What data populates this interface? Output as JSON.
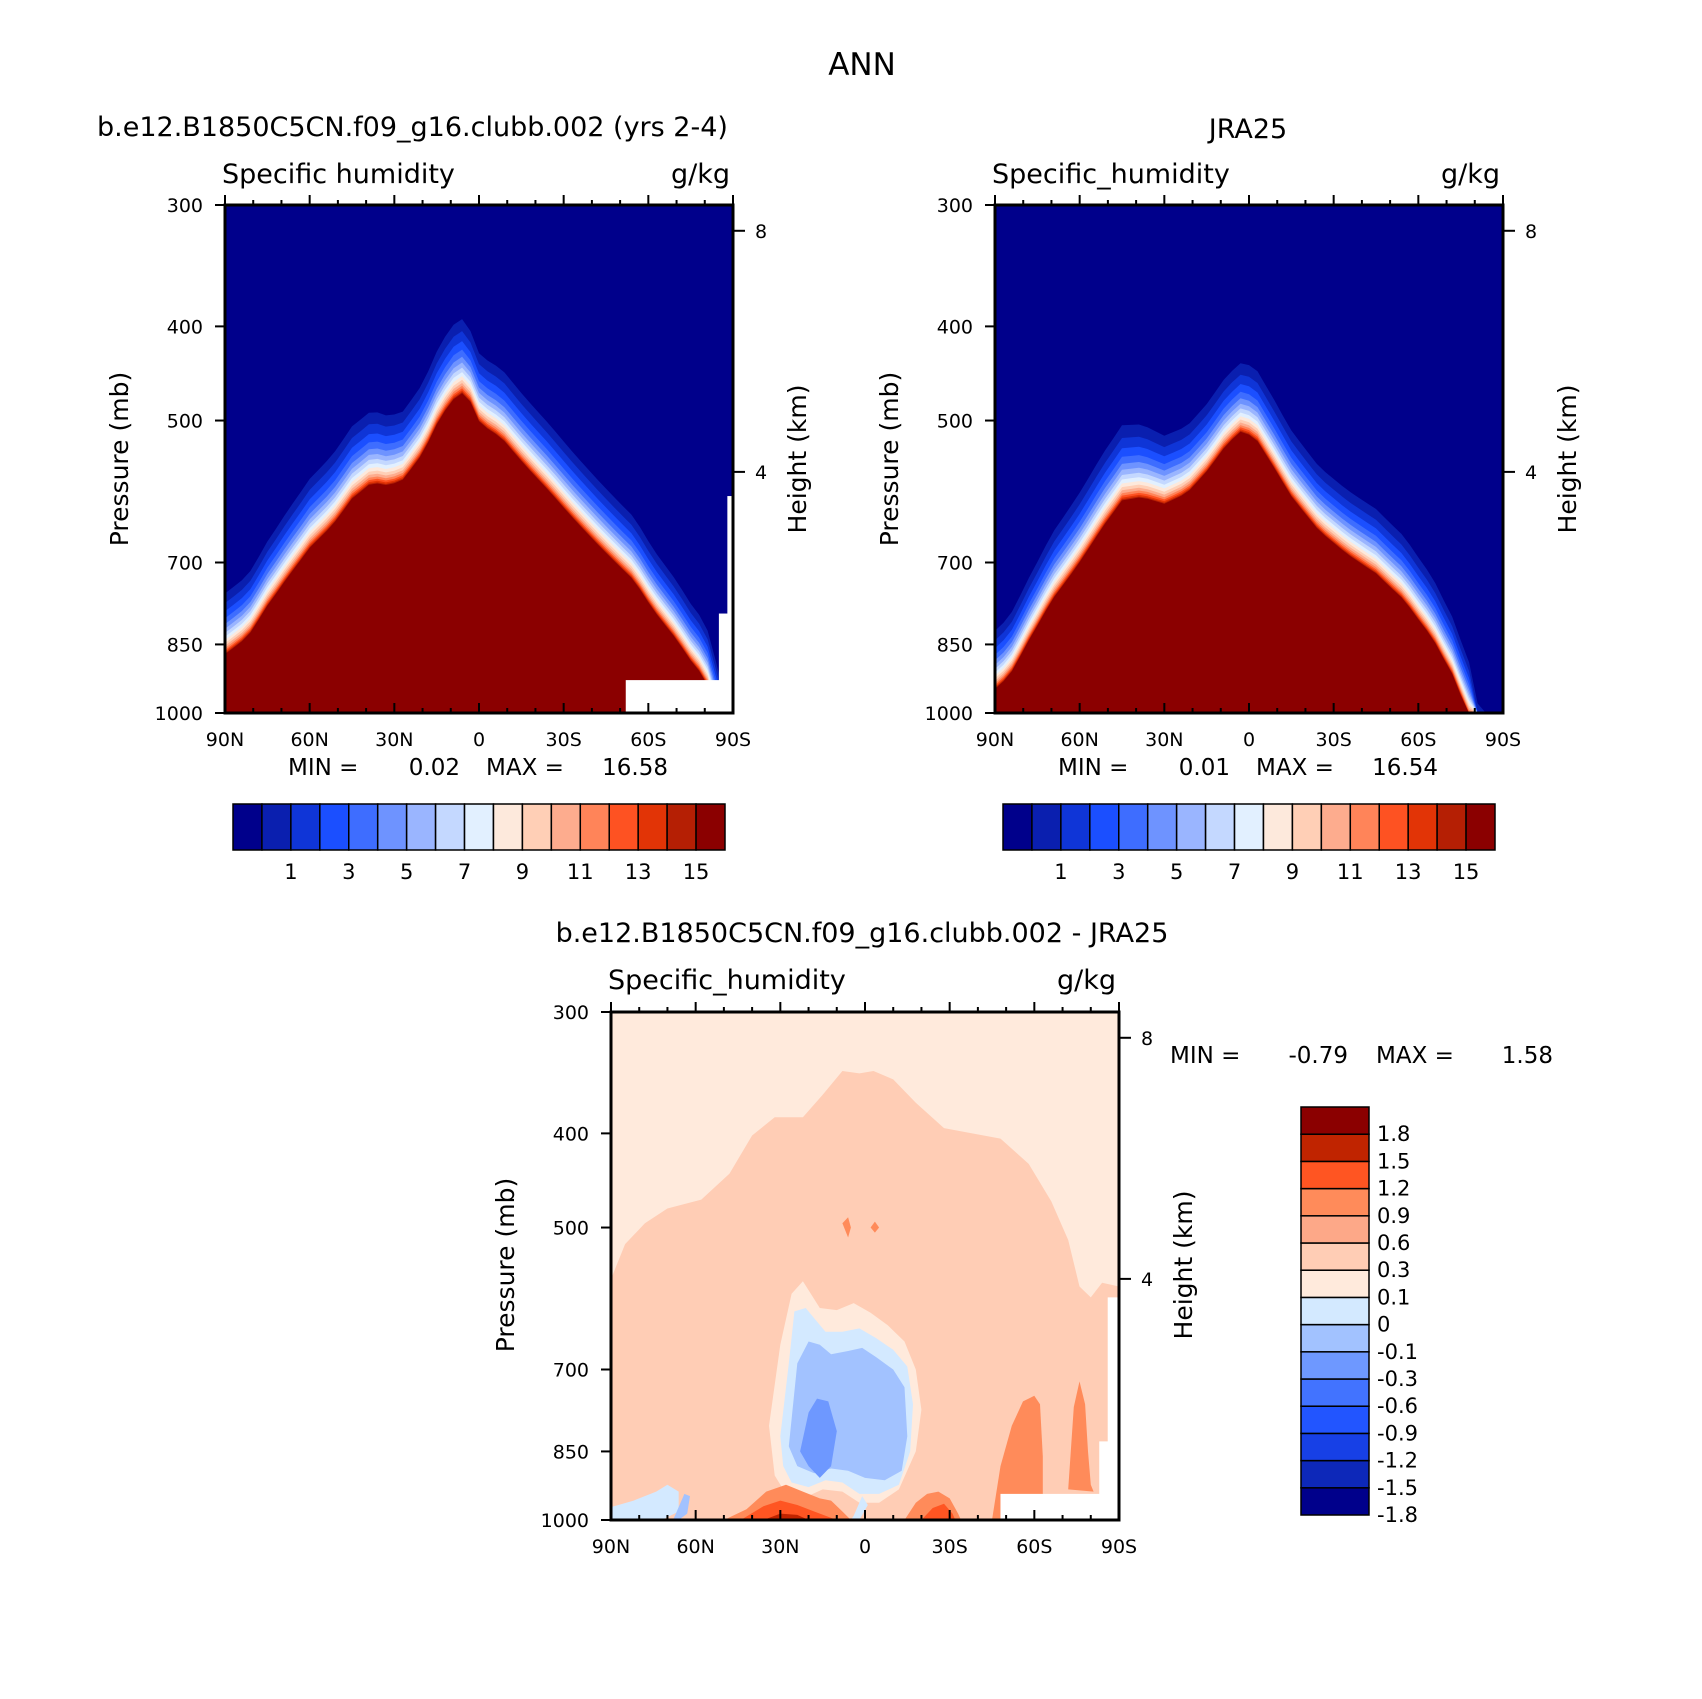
{
  "figure": {
    "title": "ANN"
  },
  "colors": {
    "humidity": [
      "#00008b",
      "#0a1faf",
      "#0f35d7",
      "#1b4fff",
      "#3e6dff",
      "#6e93ff",
      "#9ab5ff",
      "#c4d8ff",
      "#e2f0ff",
      "#fde9dc",
      "#ffcfb6",
      "#fdac8e",
      "#ff8459",
      "#fe5222",
      "#e23406",
      "#b51f04",
      "#8b0000"
    ],
    "difference": [
      "#00008b",
      "#0d28b9",
      "#1740e6",
      "#2255ff",
      "#4273ff",
      "#6e98ff",
      "#a2c2ff",
      "#d3e9ff",
      "#ffeadc",
      "#ffcdb5",
      "#fda888",
      "#ff8b5a",
      "#ff5522",
      "#c02400",
      "#8b0000"
    ]
  },
  "chart_data": [
    {
      "type": "heatmap",
      "title": "b.e12.B1850C5CN.f09_g16.clubb.002 (yrs 2-4)",
      "left_string": "Specific humidity",
      "right_string": "g/kg",
      "ylabel": "Pressure (mb)",
      "ylabel_right": "Height (km)",
      "x_ticks": [
        "90N",
        "60N",
        "30N",
        "0",
        "30S",
        "60S",
        "90S"
      ],
      "y_ticks": [
        "300",
        "400",
        "500",
        "700",
        "850",
        "1000"
      ],
      "right_ticks": [
        "8",
        "4"
      ],
      "ylim": [
        1000,
        300
      ],
      "min_text": "MIN =",
      "min_value": "0.02",
      "max_text": "MAX =",
      "max_value": "16.58",
      "levels": [
        0,
        1,
        2,
        3,
        4,
        5,
        6,
        7,
        8,
        9,
        10,
        11,
        12,
        13,
        14,
        15,
        16
      ],
      "colorbar_labels": [
        "1",
        "3",
        "5",
        "7",
        "9",
        "11",
        "13",
        "15"
      ],
      "boundary_lat": [
        -90,
        -82,
        -75,
        -68,
        -60,
        -52,
        -45,
        -38,
        -32,
        -27,
        -20,
        -15,
        -10,
        -5,
        -2,
        0,
        3,
        8,
        15,
        25,
        35,
        45,
        55,
        62,
        70,
        75,
        78,
        82,
        85,
        90
      ],
      "boundary_p": [
        720,
        690,
        635,
        590,
        545,
        515,
        480,
        462,
        470,
        465,
        435,
        402,
        378,
        370,
        390,
        405,
        412,
        420,
        445,
        480,
        520,
        560,
        600,
        650,
        700,
        740,
        760,
        800,
        880,
        1000
      ],
      "center_lat": -2,
      "rates": [
        21,
        11,
        9.5,
        8.2,
        7.0,
        5.8,
        5.1,
        4.6,
        4.2,
        3.8,
        3.4,
        3.0,
        2.6,
        2.2,
        1.8,
        1.2
      ],
      "masks": [
        {
          "lat": [
            52,
            90
          ],
          "p": [
            925,
            1000
          ]
        },
        {
          "lat": [
            88,
            90
          ],
          "p": [
            598,
            1000
          ]
        },
        {
          "lat": [
            85,
            90
          ],
          "p": [
            790,
            1000
          ]
        }
      ]
    },
    {
      "type": "heatmap",
      "title": "JRA25",
      "left_string": "Specific_humidity",
      "right_string": "g/kg",
      "ylabel": "Pressure (mb)",
      "ylabel_right": "Height (km)",
      "x_ticks": [
        "90N",
        "60N",
        "30N",
        "0",
        "30S",
        "60S",
        "90S"
      ],
      "y_ticks": [
        "300",
        "400",
        "500",
        "700",
        "850",
        "1000"
      ],
      "right_ticks": [
        "8",
        "4"
      ],
      "ylim": [
        1000,
        300
      ],
      "min_text": "MIN =",
      "min_value": "0.01",
      "max_text": "MAX =",
      "max_value": "16.54",
      "levels": [
        0,
        1,
        2,
        3,
        4,
        5,
        6,
        7,
        8,
        9,
        10,
        11,
        12,
        13,
        14,
        15,
        16
      ],
      "colorbar_labels": [
        "1",
        "3",
        "5",
        "7",
        "9",
        "11",
        "13",
        "15"
      ],
      "boundary_lat": [
        -90,
        -85,
        -78,
        -70,
        -60,
        -52,
        -45,
        -38,
        -30,
        -22,
        -15,
        -8,
        -2,
        3,
        8,
        15,
        25,
        35,
        45,
        55,
        65,
        72,
        78,
        83,
        90
      ],
      "boundary_p": [
        785,
        760,
        690,
        620,
        560,
        510,
        475,
        475,
        490,
        480,
        455,
        425,
        410,
        420,
        445,
        485,
        530,
        560,
        585,
        625,
        690,
        760,
        850,
        1000,
        1000
      ],
      "center_lat": -3,
      "rates": [
        24,
        12,
        10,
        8.6,
        7.2,
        6.1,
        5.4,
        4.8,
        4.3,
        3.9,
        3.5,
        3.1,
        2.7,
        2.3,
        1.8,
        1.2
      ],
      "masks": []
    },
    {
      "type": "heatmap",
      "title": "b.e12.B1850C5CN.f09_g16.clubb.002 - JRA25",
      "left_string": "Specific_humidity",
      "right_string": "g/kg",
      "ylabel": "Pressure (mb)",
      "ylabel_right": "Height (km)",
      "x_ticks": [
        "90N",
        "60N",
        "30N",
        "0",
        "30S",
        "60S",
        "90S"
      ],
      "y_ticks": [
        "300",
        "400",
        "500",
        "700",
        "850",
        "1000"
      ],
      "right_ticks": [
        "8",
        "4"
      ],
      "ylim": [
        1000,
        300
      ],
      "min_text": "MIN =",
      "min_value": "-0.79",
      "max_text": "MAX =",
      "max_value": "1.58",
      "levels": [
        -2.1,
        -1.8,
        -1.5,
        -1.2,
        -0.9,
        -0.6,
        -0.3,
        -0.1,
        0,
        0.1,
        0.3,
        0.6,
        0.9,
        1.2,
        1.5,
        1.8,
        2.1
      ],
      "colorbar_labels": [
        "1.8",
        "1.5",
        "1.2",
        "0.9",
        "0.6",
        "0.3",
        "0.1",
        "0",
        "-0.1",
        "-0.3",
        "-0.6",
        "-0.9",
        "-1.2",
        "-1.5",
        "-1.8"
      ],
      "regions": [
        {
          "level": 9,
          "lat": [
            -90,
            -85,
            -78,
            -70,
            -58,
            -48,
            -40,
            -32,
            -22,
            -15,
            -8,
            -2,
            3,
            10,
            18,
            28,
            38,
            48,
            58,
            66,
            72,
            76,
            80,
            84,
            90
          ],
          "p": [
            565,
            520,
            495,
            478,
            468,
            440,
            402,
            385,
            385,
            365,
            345,
            347,
            345,
            352,
            372,
            395,
            400,
            405,
            430,
            470,
            515,
            575,
            590,
            570,
            575
          ]
        },
        {
          "level": 8,
          "lat": [
            -34,
            -30,
            -26,
            -22,
            -20,
            -16,
            -10,
            -4,
            2,
            8,
            14,
            18,
            20,
            18,
            12,
            5,
            -2,
            -8,
            -15,
            -22,
            -28,
            -32,
            -34
          ],
          "p": [
            800,
            660,
            585,
            568,
            580,
            605,
            608,
            598,
            612,
            630,
            655,
            700,
            770,
            850,
            930,
            960,
            960,
            935,
            930,
            950,
            940,
            900,
            800
          ]
        },
        {
          "level": 7,
          "lat": [
            -30,
            -27,
            -25,
            -21,
            -18,
            -14,
            -8,
            -2,
            4,
            10,
            15,
            17,
            16,
            12,
            5,
            -2,
            -8,
            -14,
            -20,
            -26,
            -29,
            -30
          ],
          "p": [
            820,
            690,
            610,
            605,
            620,
            640,
            640,
            635,
            650,
            668,
            695,
            760,
            850,
            920,
            940,
            940,
            915,
            910,
            925,
            915,
            880,
            820
          ]
        },
        {
          "level": 6,
          "lat": [
            -27,
            -24,
            -20,
            -16,
            -12,
            -6,
            -1,
            4,
            10,
            14,
            15,
            13,
            7,
            0,
            -6,
            -12,
            -18,
            -24,
            -27
          ],
          "p": [
            840,
            690,
            655,
            660,
            675,
            670,
            665,
            680,
            700,
            730,
            820,
            890,
            910,
            905,
            890,
            885,
            895,
            880,
            840
          ]
        },
        {
          "level": 5,
          "lat": [
            -23,
            -20,
            -17,
            -13,
            -10,
            -12,
            -16,
            -20,
            -23
          ],
          "p": [
            850,
            775,
            750,
            755,
            810,
            880,
            905,
            880,
            850
          ]
        },
        {
          "level": 11,
          "lat": [
            45,
            48,
            52,
            56,
            60,
            62,
            63,
            63,
            45
          ],
          "p": [
            1000,
            880,
            800,
            755,
            745,
            760,
            860,
            1000,
            1000
          ]
        },
        {
          "level": 11,
          "lat": [
            72,
            74,
            76,
            78,
            79,
            80,
            81,
            72
          ],
          "p": [
            930,
            765,
            720,
            760,
            850,
            920,
            935,
            930
          ]
        },
        {
          "level": 11,
          "lat": [
            -50,
            -42,
            -35,
            -28,
            -22,
            -16,
            -12,
            -8,
            -5,
            -50
          ],
          "p": [
            1000,
            975,
            935,
            920,
            935,
            950,
            955,
            980,
            1000,
            1000
          ]
        },
        {
          "level": 11,
          "lat": [
            14,
            18,
            22,
            26,
            30,
            33,
            34,
            14
          ],
          "p": [
            1000,
            960,
            940,
            935,
            950,
            985,
            1000,
            1000
          ]
        },
        {
          "level": 12,
          "lat": [
            -44,
            -36,
            -30,
            -24,
            -18,
            -14,
            -10,
            -44
          ],
          "p": [
            1000,
            968,
            955,
            965,
            980,
            990,
            1000,
            1000
          ]
        },
        {
          "level": 12,
          "lat": [
            20,
            24,
            28,
            31,
            32,
            20
          ],
          "p": [
            1000,
            972,
            962,
            985,
            1000,
            1000
          ]
        },
        {
          "level": 13,
          "lat": [
            -36,
            -30,
            -24,
            -20,
            -36
          ],
          "p": [
            1000,
            985,
            988,
            1000,
            1000
          ]
        },
        {
          "level": 11,
          "lat": [
            -8,
            -6,
            -5,
            -6,
            -8
          ],
          "p": [
            495,
            488,
            500,
            512,
            495
          ]
        },
        {
          "level": 11,
          "lat": [
            2,
            3.5,
            5,
            3.5,
            2
          ],
          "p": [
            500,
            493,
            500,
            506,
            500
          ]
        },
        {
          "level": 7,
          "lat": [
            -90,
            -82,
            -74,
            -70,
            -66,
            -66,
            -72,
            -80,
            -90
          ],
          "p": [
            970,
            955,
            935,
            920,
            935,
            980,
            1000,
            1000,
            1000
          ]
        },
        {
          "level": 6,
          "lat": [
            -68,
            -64,
            -62,
            -63,
            -66,
            -68
          ],
          "p": [
            1000,
            940,
            945,
            985,
            1000,
            1000
          ]
        },
        {
          "level": 7,
          "lat": [
            -4,
            -1,
            1,
            -2,
            -5,
            -4
          ],
          "p": [
            990,
            945,
            965,
            1000,
            1000,
            990
          ]
        }
      ],
      "masks": [
        {
          "lat": [
            48,
            90
          ],
          "p": [
            940,
            1000
          ]
        },
        {
          "lat": [
            86,
            90
          ],
          "p": [
            590,
            1000
          ]
        },
        {
          "lat": [
            83,
            90
          ],
          "p": [
            830,
            1000
          ]
        }
      ]
    }
  ]
}
